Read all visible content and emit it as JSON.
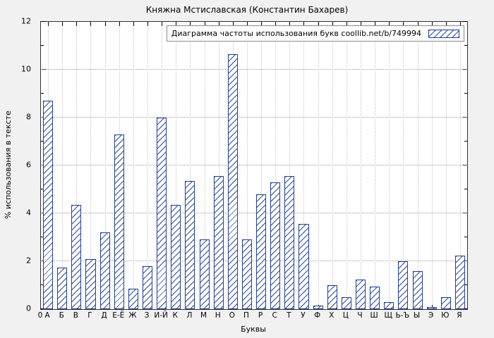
{
  "figure": {
    "title": "Княжна Мстиславская (Константин Бахарев)",
    "legend_label": "Диаграмма частоты использования букв coollib.net/b/749994",
    "xlabel": "Буквы",
    "ylabel": "% использования в тексте",
    "origin_label": "0"
  },
  "chart_data": {
    "type": "bar",
    "title": "Княжна Мстиславская (Константин Бахарев)",
    "legend": "Диаграмма частоты использования букв coollib.net/b/749994",
    "xlabel": "Буквы",
    "ylabel": "% использования в тексте",
    "categories": [
      "А",
      "Б",
      "В",
      "Г",
      "Д",
      "Е-Ё",
      "Ж",
      "З",
      "И-Й",
      "К",
      "Л",
      "М",
      "Н",
      "О",
      "П",
      "Р",
      "С",
      "Т",
      "У",
      "Ф",
      "Х",
      "Ц",
      "Ч",
      "Ш",
      "Щ",
      "Ь-Ъ",
      "Ы",
      "Э",
      "Ю",
      "Я"
    ],
    "values": [
      8.7,
      1.75,
      4.35,
      2.1,
      3.2,
      7.3,
      0.85,
      1.8,
      8.0,
      4.35,
      5.35,
      2.9,
      5.55,
      10.65,
      2.9,
      4.8,
      5.3,
      5.55,
      3.55,
      0.15,
      1.0,
      0.5,
      1.25,
      0.95,
      0.3,
      2.0,
      1.6,
      0.1,
      0.5,
      2.25
    ],
    "ylim": [
      0,
      12
    ],
    "ytick_step": 2,
    "grid": "dotted horizontal and vertical at tics",
    "legend_position": "top-right-inside",
    "bar_style": {
      "fill": "#ffffff",
      "hatch": "diagonal-forward",
      "line_color": "#1d3c8f"
    }
  },
  "colors": {
    "background": "#f1f1f1",
    "plot_background": "#ffffff",
    "axis": "#333333",
    "grid_horizontal": "#9a9a9a",
    "grid_vertical": "#c4c4c4",
    "bar_line": "#1d3c8f",
    "text": "#000000"
  }
}
